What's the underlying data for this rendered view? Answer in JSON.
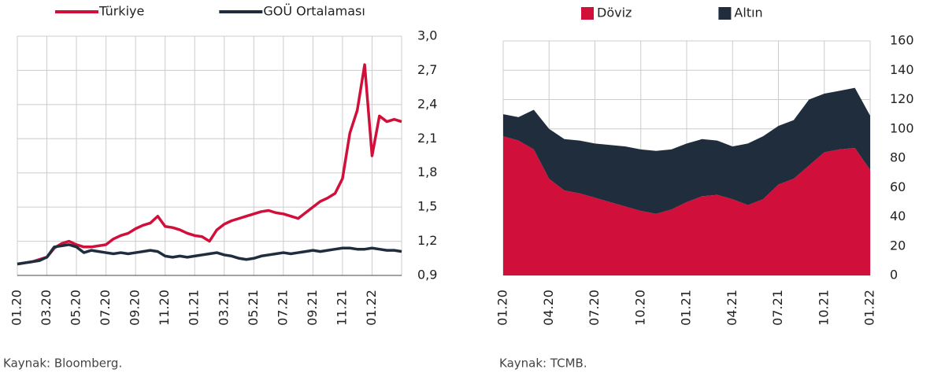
{
  "chart_data": [
    {
      "type": "line",
      "categories": [
        "01.20",
        null,
        null,
        null,
        "03.20",
        null,
        null,
        null,
        "05.20",
        null,
        null,
        null,
        "07.20",
        null,
        null,
        null,
        "09.20",
        null,
        null,
        null,
        "11.20",
        null,
        null,
        null,
        "01.21",
        null,
        null,
        null,
        "03.21",
        null,
        null,
        null,
        "05.21",
        null,
        null,
        null,
        "07.21",
        null,
        null,
        null,
        "09.21",
        null,
        null,
        null,
        "11.21",
        null,
        null,
        null,
        "01.22",
        null,
        null,
        null,
        null
      ],
      "series": [
        {
          "name": "Türkiye",
          "color": "#d0103a",
          "values": [
            1.0,
            1.01,
            1.02,
            1.04,
            1.06,
            1.14,
            1.18,
            1.2,
            1.17,
            1.15,
            1.15,
            1.16,
            1.17,
            1.22,
            1.25,
            1.27,
            1.31,
            1.34,
            1.36,
            1.42,
            1.33,
            1.32,
            1.3,
            1.27,
            1.25,
            1.24,
            1.2,
            1.3,
            1.35,
            1.38,
            1.4,
            1.42,
            1.44,
            1.46,
            1.47,
            1.45,
            1.44,
            1.42,
            1.4,
            1.45,
            1.5,
            1.55,
            1.58,
            1.62,
            1.75,
            2.15,
            2.35,
            2.75,
            1.95,
            2.3,
            2.25,
            2.27,
            2.25
          ]
        },
        {
          "name": "GOÜ Ortalaması",
          "color": "#1f2d3d",
          "values": [
            1.0,
            1.01,
            1.02,
            1.03,
            1.06,
            1.15,
            1.16,
            1.17,
            1.15,
            1.1,
            1.12,
            1.11,
            1.1,
            1.09,
            1.1,
            1.09,
            1.1,
            1.11,
            1.12,
            1.11,
            1.07,
            1.06,
            1.07,
            1.06,
            1.07,
            1.08,
            1.09,
            1.1,
            1.08,
            1.07,
            1.05,
            1.04,
            1.05,
            1.07,
            1.08,
            1.09,
            1.1,
            1.09,
            1.1,
            1.11,
            1.12,
            1.11,
            1.12,
            1.13,
            1.14,
            1.14,
            1.13,
            1.13,
            1.14,
            1.13,
            1.12,
            1.12,
            1.11
          ]
        }
      ],
      "ylim": [
        0.9,
        3.0
      ],
      "yticks": [
        {
          "value": 0.9,
          "label": "0,9"
        },
        {
          "value": 1.2,
          "label": "1,2"
        },
        {
          "value": 1.5,
          "label": "1,5"
        },
        {
          "value": 1.8,
          "label": "1,8"
        },
        {
          "value": 2.1,
          "label": "2,1"
        },
        {
          "value": 2.4,
          "label": "2,4"
        },
        {
          "value": 2.7,
          "label": "2,7"
        },
        {
          "value": 3.0,
          "label": "3,0"
        }
      ],
      "grid": true,
      "source": "Kaynak: Bloomberg."
    },
    {
      "type": "stacked-area",
      "categories": [
        "01.20",
        null,
        null,
        "04.20",
        null,
        null,
        "07.20",
        null,
        null,
        "10.20",
        null,
        null,
        "01.21",
        null,
        null,
        "04.21",
        null,
        null,
        "07.21",
        null,
        null,
        "10.21",
        null,
        null,
        "01.22"
      ],
      "series": [
        {
          "name": "Döviz",
          "color": "#d0103a",
          "values": [
            95,
            92,
            86,
            66,
            58,
            56,
            53,
            50,
            47,
            44,
            42,
            45,
            50,
            54,
            55,
            52,
            48,
            52,
            62,
            66,
            75,
            84,
            86,
            87,
            72
          ]
        },
        {
          "name": "Altın",
          "color": "#1f2d3d",
          "values": [
            15,
            16,
            27,
            34,
            35,
            36,
            37,
            39,
            41,
            42,
            43,
            41,
            40,
            39,
            37,
            36,
            42,
            43,
            40,
            40,
            45,
            40,
            40,
            41,
            37
          ]
        }
      ],
      "ylim": [
        0,
        160
      ],
      "yticks": [
        0,
        20,
        40,
        60,
        80,
        100,
        120,
        140,
        160
      ],
      "grid": true,
      "source": "Kaynak: TCMB."
    }
  ]
}
